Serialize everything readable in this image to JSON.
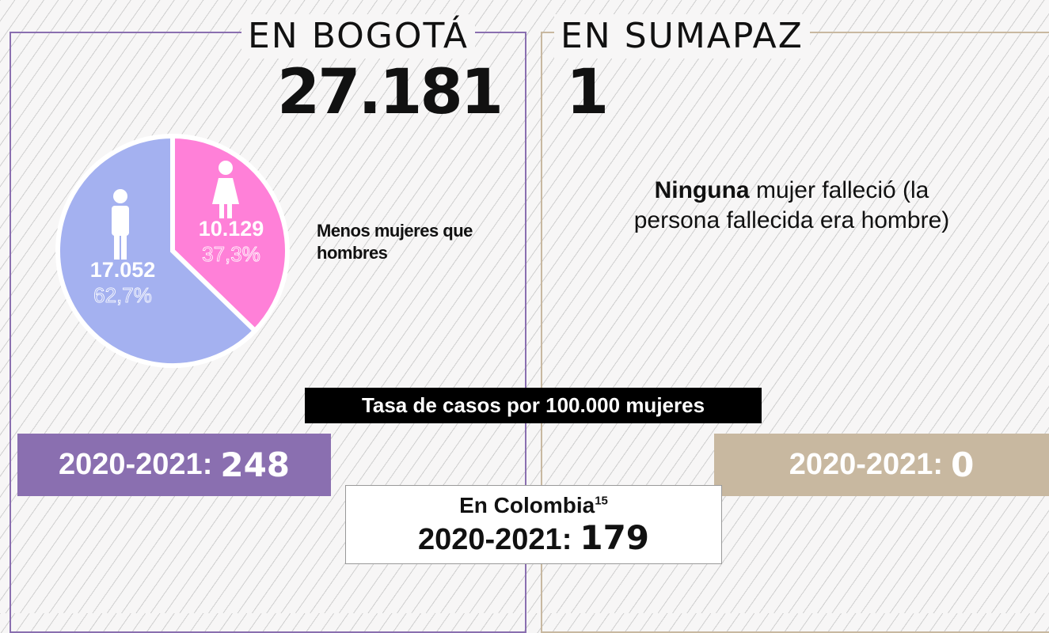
{
  "left": {
    "title": "EN BOGOTÁ",
    "total": "27.181",
    "note_bold": "Menos",
    "note_rest": "mujeres que hombres",
    "rate_prefix": "2020-2021:",
    "rate_value": "248"
  },
  "right": {
    "title": "EN SUMAPAZ",
    "total": "1",
    "note_bold": "Ninguna",
    "note_rest": "mujer falleció (la persona fallecida era hombre)",
    "rate_prefix": "2020-2021:",
    "rate_value": "0"
  },
  "banner": "Tasa de casos por 100.000 mujeres",
  "colombia": {
    "label": "En Colombia",
    "footnote": "15",
    "rate_prefix": "2020-2021:",
    "rate_value": "179"
  },
  "chart_data": {
    "type": "pie",
    "values": [
      10129,
      17052
    ],
    "value_labels": [
      "10.129",
      "17.052"
    ],
    "percentages": [
      37.3,
      62.7
    ],
    "percentage_labels": [
      "37,3%",
      "62,7%"
    ],
    "colors": [
      "#ff80d8",
      "#a4b1f0"
    ]
  }
}
